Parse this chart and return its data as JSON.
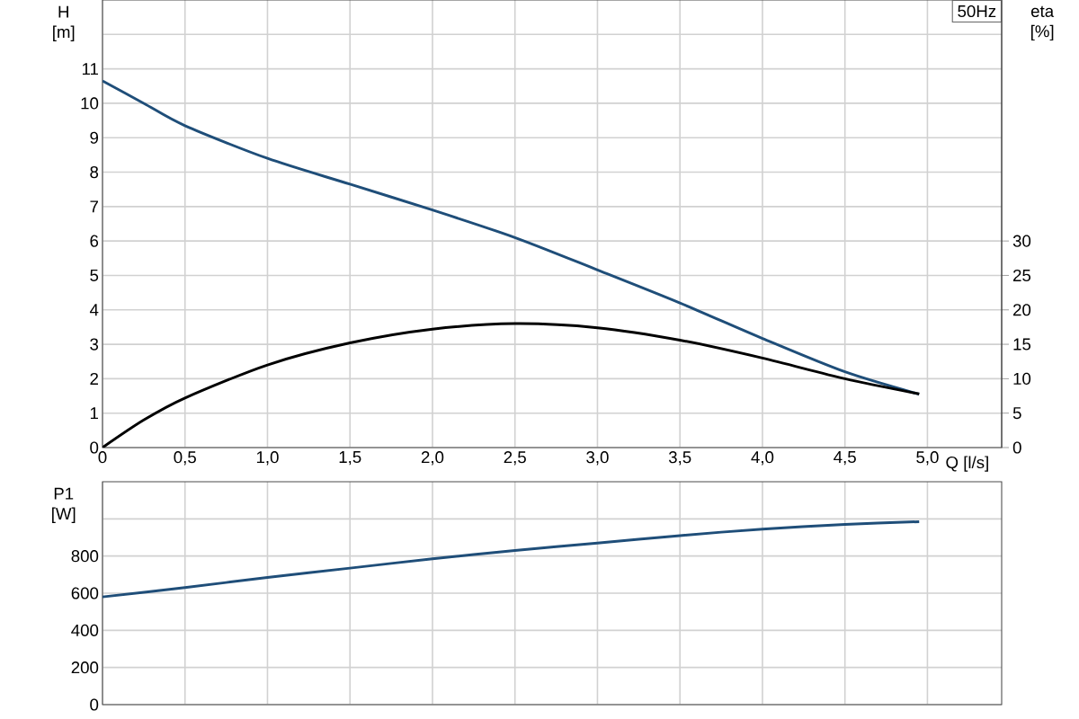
{
  "chart_data": [
    {
      "type": "line",
      "xlabel": "Q [l/s]",
      "ylabel": "H [m]",
      "y2label": "eta [%]",
      "annotations": [
        "50Hz"
      ],
      "grid": true,
      "x": [
        0,
        0.25,
        0.5,
        1.0,
        1.5,
        2.0,
        2.5,
        3.0,
        3.5,
        4.0,
        4.5,
        4.95
      ],
      "xlim": [
        0,
        5.45
      ],
      "ylim": [
        0,
        13
      ],
      "y2lim": [
        0,
        65
      ],
      "xticks": [
        0,
        {
          "value": 0.5,
          "label": "0,5"
        },
        {
          "value": 1.0,
          "label": "1,0"
        },
        {
          "value": 1.5,
          "label": "1,5"
        },
        {
          "value": 2.0,
          "label": "2,0"
        },
        {
          "value": 2.5,
          "label": "2,5"
        },
        {
          "value": 3.0,
          "label": "3,0"
        },
        {
          "value": 3.5,
          "label": "3,5"
        },
        {
          "value": 4.0,
          "label": "4,0"
        },
        {
          "value": 4.5,
          "label": "4,5"
        },
        {
          "value": 5.0,
          "label": "5,0"
        }
      ],
      "yticks": [
        0,
        1,
        2,
        3,
        4,
        5,
        6,
        7,
        8,
        9,
        10,
        11,
        {
          "value": 12,
          "label": null
        }
      ],
      "y2ticks": [
        0,
        5,
        10,
        15,
        20,
        25,
        30
      ],
      "series": [
        {
          "color": "#1f4e79",
          "values": [
            10.65,
            10.0,
            9.35,
            8.4,
            7.65,
            6.9,
            6.1,
            5.16,
            4.2,
            3.17,
            2.2,
            1.55
          ]
        },
        {
          "color": "#000000",
          "axis": "y2",
          "values": [
            0,
            4,
            7.2,
            12,
            15.2,
            17.2,
            18,
            17.4,
            15.6,
            13,
            10,
            7.8
          ]
        }
      ]
    },
    {
      "type": "line",
      "ylabel": "P1 [W]",
      "grid": true,
      "tick_labels": "y",
      "x": [
        0,
        0.5,
        1.0,
        1.5,
        2.0,
        2.5,
        3.0,
        3.5,
        4.0,
        4.5,
        4.95
      ],
      "xlim": [
        0,
        5.45
      ],
      "ylim": [
        0,
        1200
      ],
      "xticks": [
        0,
        0.5,
        1.0,
        1.5,
        2.0,
        2.5,
        3.0,
        3.5,
        4.0,
        4.5,
        5.0
      ],
      "yticks": [
        0,
        200,
        400,
        600,
        800,
        {
          "value": 1000,
          "label": null
        }
      ],
      "series": [
        {
          "color": "#1f4e79",
          "values": [
            580,
            630,
            685,
            735,
            785,
            830,
            870,
            910,
            945,
            970,
            985
          ]
        }
      ]
    }
  ]
}
